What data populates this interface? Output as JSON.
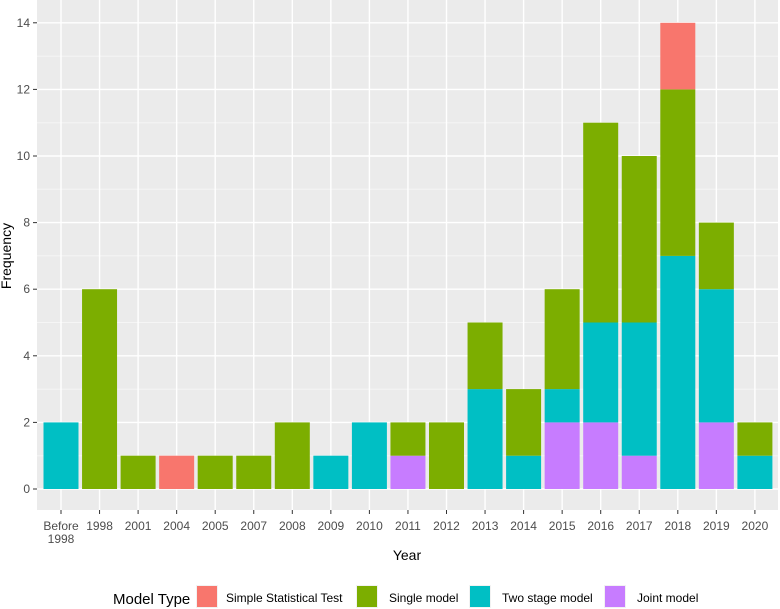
{
  "chart_data": {
    "type": "bar",
    "stacked": true,
    "title": "",
    "xlabel": "Year",
    "ylabel": "Frequency",
    "ylim": [
      0,
      15
    ],
    "yticks": [
      0,
      2,
      4,
      6,
      8,
      10,
      12,
      14
    ],
    "grid": true,
    "legend_position": "bottom",
    "legend_title": "Model Type",
    "categories": [
      "Before 1998",
      "1998",
      "2001",
      "2004",
      "2005",
      "2007",
      "2008",
      "2009",
      "2010",
      "2011",
      "2012",
      "2013",
      "2014",
      "2015",
      "2016",
      "2017",
      "2018",
      "2019",
      "2020"
    ],
    "series": [
      {
        "name": "Joint model",
        "color": "#c77cff",
        "values": [
          0,
          0,
          0,
          0,
          0,
          0,
          0,
          0,
          0,
          1,
          0,
          0,
          0,
          2,
          2,
          1,
          0,
          2,
          0
        ]
      },
      {
        "name": "Two stage model",
        "color": "#00bfc4",
        "values": [
          2,
          0,
          0,
          0,
          0,
          0,
          0,
          1,
          2,
          0,
          0,
          3,
          1,
          1,
          3,
          4,
          7,
          4,
          1
        ]
      },
      {
        "name": "Single model",
        "color": "#7cae00",
        "values": [
          0,
          6,
          1,
          0,
          1,
          1,
          2,
          0,
          0,
          1,
          2,
          2,
          2,
          3,
          6,
          5,
          5,
          2,
          1
        ]
      },
      {
        "name": "Simple Statistical Test",
        "color": "#f8766d",
        "values": [
          0,
          0,
          0,
          1,
          0,
          0,
          0,
          0,
          0,
          0,
          0,
          0,
          0,
          0,
          0,
          0,
          2,
          0,
          0
        ]
      }
    ],
    "legend_order": [
      "Simple Statistical Test",
      "Single model",
      "Two stage model",
      "Joint model"
    ]
  }
}
